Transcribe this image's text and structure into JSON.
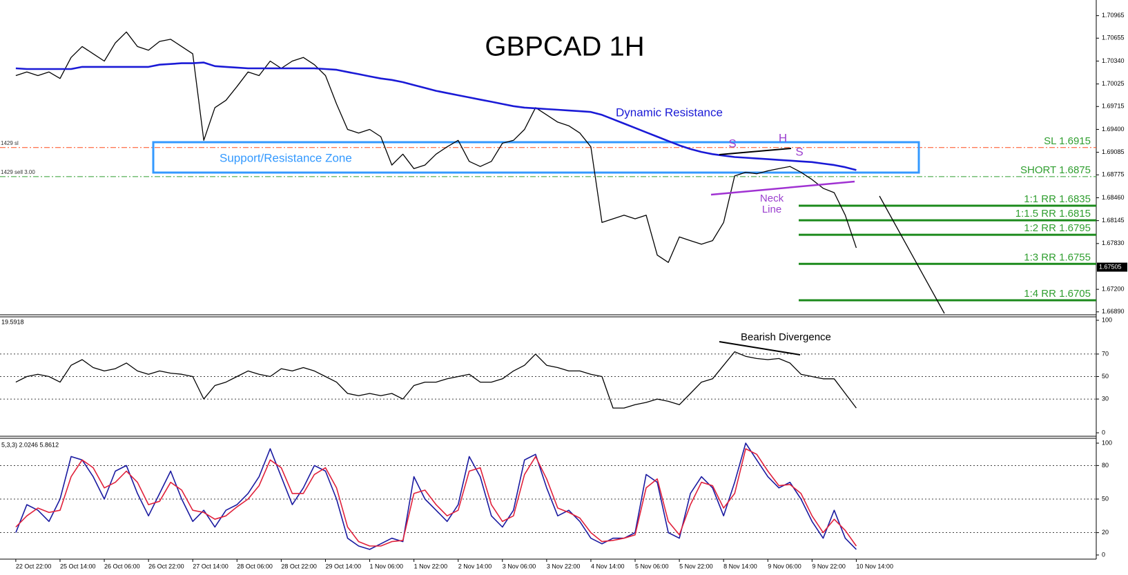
{
  "chart_data": [
    {
      "type": "line",
      "title": "GBPCAD 1H",
      "categories": [
        "22 Oct 22:00",
        null,
        null,
        null,
        "25 Oct 14:00",
        null,
        null,
        null,
        "26 Oct 06:00",
        null,
        null,
        null,
        "26 Oct 22:00",
        null,
        null,
        null,
        "27 Oct 14:00",
        null,
        null,
        null,
        "28 Oct 06:00",
        null,
        null,
        null,
        "28 Oct 22:00",
        null,
        null,
        null,
        "29 Oct 14:00",
        null,
        null,
        null,
        "1 Nov 06:00",
        null,
        null,
        null,
        "1 Nov 22:00",
        null,
        null,
        null,
        "2 Nov 14:00",
        null,
        null,
        null,
        "3 Nov 06:00",
        null,
        null,
        null,
        "3 Nov 22:00",
        null,
        null,
        null,
        "4 Nov 14:00",
        null,
        null,
        null,
        "5 Nov 06:00",
        null,
        null,
        null,
        "5 Nov 22:00",
        null,
        null,
        null,
        "8 Nov 14:00",
        null,
        null,
        null,
        "9 Nov 06:00",
        null,
        null,
        null,
        "9 Nov 22:00",
        null,
        null,
        null,
        "10 Nov 14:00"
      ],
      "series": [
        {
          "color": "#000000",
          "width": 1.3,
          "values": [
            1.7014,
            1.7019,
            1.7014,
            1.7019,
            1.701,
            1.7039,
            1.7054,
            1.7044,
            1.7034,
            1.7059,
            1.7074,
            1.7054,
            1.7049,
            1.7061,
            1.7064,
            1.7054,
            1.7044,
            1.6925,
            1.697,
            1.698,
            1.6999,
            1.7019,
            1.7014,
            1.7034,
            1.7024,
            1.7034,
            1.7039,
            1.7029,
            1.7014,
            1.6975,
            1.694,
            1.6935,
            1.694,
            1.693,
            1.6891,
            1.6906,
            1.6886,
            1.6891,
            1.6906,
            1.6916,
            1.6925,
            1.6896,
            1.6889,
            1.6896,
            1.6921,
            1.6925,
            1.694,
            1.697,
            1.696,
            1.695,
            1.6945,
            1.6935,
            1.6916,
            1.6812,
            1.6817,
            1.6822,
            1.6817,
            1.6822,
            1.6767,
            1.6757,
            1.6792,
            1.6787,
            1.6782,
            1.6787,
            1.6812,
            1.6876,
            1.6881,
            1.6879,
            1.6883,
            1.6886,
            1.6889,
            1.6881,
            1.6871,
            1.6859,
            1.6853,
            1.6822,
            1.6777
          ]
        },
        {
          "color": "#1a1ad6",
          "width": 2.6,
          "values": [
            1.7024,
            1.7023,
            1.7023,
            1.7023,
            1.7023,
            1.7023,
            1.7026,
            1.7026,
            1.7026,
            1.7026,
            1.7026,
            1.7026,
            1.7026,
            1.7029,
            1.703,
            1.7031,
            1.7031,
            1.7032,
            1.7027,
            1.7026,
            1.7025,
            1.7024,
            1.7024,
            1.7024,
            1.7024,
            1.7024,
            1.7024,
            1.7024,
            1.7023,
            1.7022,
            1.7019,
            1.7016,
            1.7013,
            1.701,
            1.7008,
            1.7005,
            1.7001,
            1.6997,
            1.6993,
            1.699,
            1.6987,
            1.6984,
            1.6981,
            1.6978,
            1.6975,
            1.6972,
            1.697,
            1.6969,
            1.6968,
            1.6967,
            1.6966,
            1.6965,
            1.6964,
            1.696,
            1.6954,
            1.6948,
            1.6942,
            1.6936,
            1.693,
            1.6924,
            1.6918,
            1.6913,
            1.6909,
            1.6906,
            1.6904,
            1.6902,
            1.6901,
            1.69,
            1.6899,
            1.6898,
            1.6897,
            1.6896,
            1.6895,
            1.6893,
            1.6891,
            1.6888,
            1.6884
          ]
        }
      ],
      "ylim": [
        1.6685,
        1.7118
      ],
      "yticks": [
        1.70965,
        1.70655,
        {
          "value": 1.7034,
          "label": "1.70340"
        },
        1.70025,
        1.69715,
        {
          "value": 1.694,
          "label": "1.69400"
        },
        1.69085,
        1.68775,
        {
          "value": 1.6846,
          "label": "1.68460"
        },
        1.68145,
        {
          "value": 1.6783,
          "label": "1.67830"
        },
        {
          "value": 1.672,
          "label": "1.67200"
        },
        {
          "value": 1.6689,
          "label": "1.66890"
        }
      ],
      "last_price": 1.67505,
      "levels": [
        {
          "label": "SL 1.6915",
          "value": 1.6915,
          "color": "#ff4a1a",
          "style": "dash-dot",
          "order_label": "1429 sl"
        },
        {
          "label": "SHORT 1.6875",
          "value": 1.6875,
          "color": "#2f9e2f",
          "style": "dash-dot",
          "order_label": "1429 sell 3.00"
        },
        {
          "label": "1:1 RR 1.6835",
          "value": 1.6835,
          "color": "#1b8a1b",
          "style": "solid"
        },
        {
          "label": "1:1.5 RR 1.6815",
          "value": 1.6815,
          "color": "#1b8a1b",
          "style": "solid"
        },
        {
          "label": "1:2 RR 1.6795",
          "value": 1.6795,
          "color": "#1b8a1b",
          "style": "solid"
        },
        {
          "label": "1:3 RR 1.6755",
          "value": 1.6755,
          "color": "#1b8a1b",
          "style": "solid"
        },
        {
          "label": "1:4 RR 1.6705",
          "value": 1.6705,
          "color": "#1b8a1b",
          "style": "solid"
        }
      ],
      "annotations": {
        "dynamic_resistance": "Dynamic Resistance",
        "zone": "Support/Resistance Zone",
        "left_shoulder": "S",
        "head": "H",
        "right_shoulder": "S",
        "neckline": [
          "Neck",
          "Line"
        ]
      }
    },
    {
      "type": "line",
      "header": "19.5918",
      "annotation": "Bearish Divergence",
      "series": [
        {
          "color": "#000000",
          "width": 1.3,
          "values": [
            45,
            50,
            52,
            50,
            45,
            60,
            65,
            58,
            55,
            57,
            62,
            55,
            52,
            55,
            53,
            52,
            50,
            30,
            42,
            45,
            50,
            55,
            52,
            50,
            57,
            55,
            58,
            55,
            50,
            45,
            35,
            33,
            35,
            33,
            35,
            30,
            42,
            45,
            45,
            48,
            50,
            52,
            45,
            45,
            48,
            55,
            60,
            70,
            60,
            58,
            55,
            55,
            52,
            50,
            22,
            22,
            25,
            27,
            30,
            28,
            25,
            35,
            45,
            48,
            60,
            72,
            68,
            66,
            65,
            66,
            62,
            52,
            50,
            48,
            48,
            35,
            22
          ]
        }
      ],
      "ylim": [
        0,
        100
      ],
      "yticks": [
        100,
        70,
        50,
        30,
        0
      ],
      "grid": "dotted"
    },
    {
      "type": "line",
      "header": "5,3,3) 2.0246 5.8612",
      "series": [
        {
          "color": "#1a1aa0",
          "width": 1.6,
          "values": [
            20,
            45,
            40,
            30,
            50,
            88,
            85,
            70,
            50,
            75,
            80,
            55,
            35,
            55,
            75,
            50,
            30,
            40,
            25,
            40,
            45,
            55,
            70,
            95,
            70,
            45,
            60,
            80,
            75,
            50,
            15,
            8,
            5,
            10,
            15,
            12,
            70,
            50,
            40,
            30,
            45,
            88,
            70,
            35,
            25,
            40,
            85,
            90,
            60,
            35,
            40,
            30,
            15,
            10,
            15,
            15,
            20,
            72,
            65,
            20,
            15,
            55,
            70,
            60,
            35,
            65,
            100,
            85,
            70,
            60,
            65,
            50,
            30,
            15,
            40,
            15,
            5
          ]
        },
        {
          "color": "#e0203a",
          "width": 1.6,
          "values": [
            25,
            35,
            42,
            38,
            40,
            70,
            85,
            78,
            60,
            65,
            75,
            65,
            45,
            48,
            65,
            58,
            40,
            38,
            32,
            35,
            43,
            50,
            62,
            85,
            78,
            55,
            55,
            72,
            78,
            60,
            25,
            12,
            8,
            8,
            12,
            13,
            55,
            58,
            45,
            35,
            40,
            75,
            78,
            45,
            30,
            35,
            72,
            88,
            68,
            42,
            38,
            33,
            20,
            12,
            13,
            15,
            18,
            60,
            68,
            30,
            18,
            45,
            65,
            62,
            42,
            55,
            95,
            90,
            75,
            62,
            63,
            55,
            35,
            20,
            32,
            22,
            8
          ]
        }
      ],
      "ylim": [
        0,
        100
      ],
      "yticks": [
        100,
        80,
        50,
        20,
        0
      ],
      "grid": "dotted"
    }
  ]
}
